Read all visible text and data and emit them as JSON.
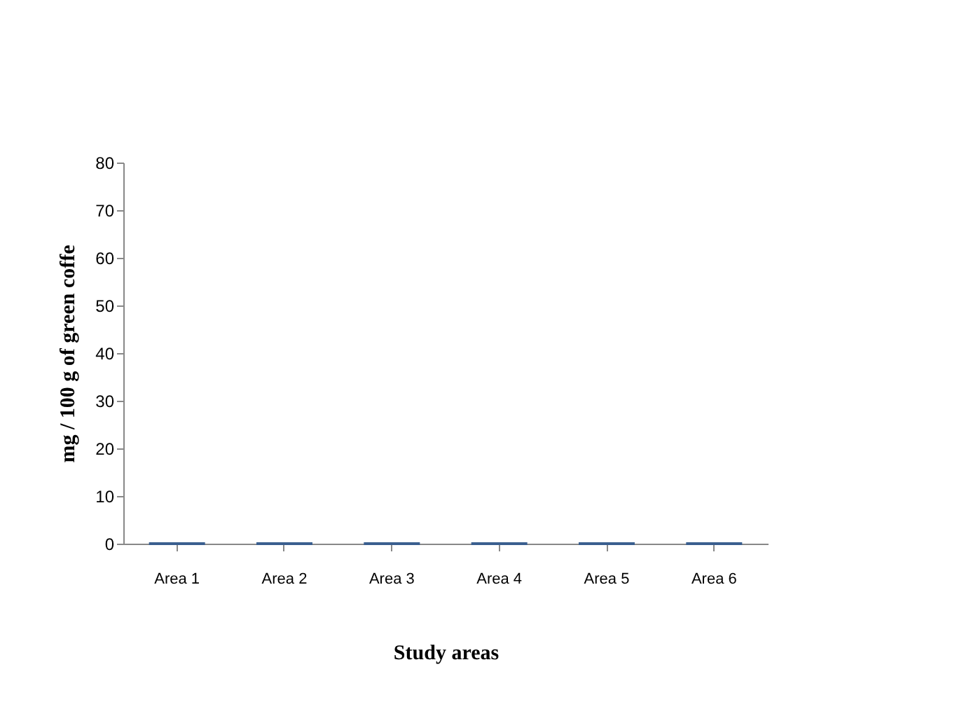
{
  "chart_data": {
    "type": "bar",
    "xlabel": "Study areas",
    "ylabel": "mg / 100 g of green coffe",
    "categories": [
      "Area 1",
      "Area 2",
      "Area 3",
      "Area 4",
      "Area 5",
      "Area 6"
    ],
    "values": [
      0,
      0,
      0,
      0,
      0,
      0
    ],
    "color": "#3a5f8f",
    "ylim": [
      0,
      80
    ],
    "yticks": [
      0,
      10,
      20,
      30,
      40,
      50,
      60,
      70,
      80
    ],
    "grid": false
  }
}
